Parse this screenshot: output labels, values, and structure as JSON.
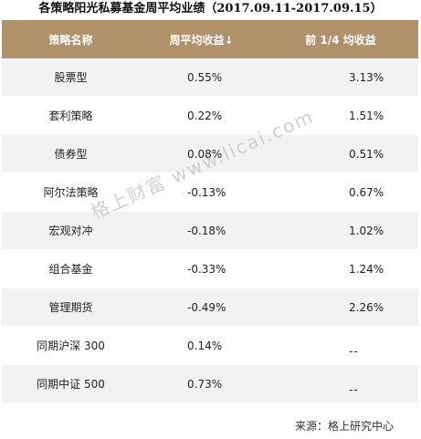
{
  "title": "各策略阳光私募基金周平均业绩（2017.09.11-2017.09.15）",
  "headers": [
    "策略名称",
    "周平均收益↓",
    "前 1/4 均收益"
  ],
  "rows": [
    {
      "name": "股票型",
      "avg": "0.55%",
      "top": "3.13%"
    },
    {
      "name": "套利策略",
      "avg": "0.22%",
      "top": "1.51%"
    },
    {
      "name": "债券型",
      "avg": "0.08%",
      "top": "0.51%"
    },
    {
      "name": "阿尔法策略",
      "avg": "-0.13%",
      "top": "0.67%"
    },
    {
      "name": "宏观对冲",
      "avg": "-0.18%",
      "top": "1.02%"
    },
    {
      "name": "组合基金",
      "avg": "-0.33%",
      "top": "1.24%"
    },
    {
      "name": "管理期货",
      "avg": "-0.49%",
      "top": "2.26%"
    },
    {
      "name": "同期沪深 300",
      "avg": "0.14%",
      "top": "--"
    },
    {
      "name": "同期中证 500",
      "avg": "0.73%",
      "top": "--"
    }
  ],
  "watermark": "格上财富 www.licai.com",
  "source": "来源：格上研究中心",
  "colors": {
    "header_bg": "#b0916a",
    "stripe_bg": "#f2f2f2"
  }
}
